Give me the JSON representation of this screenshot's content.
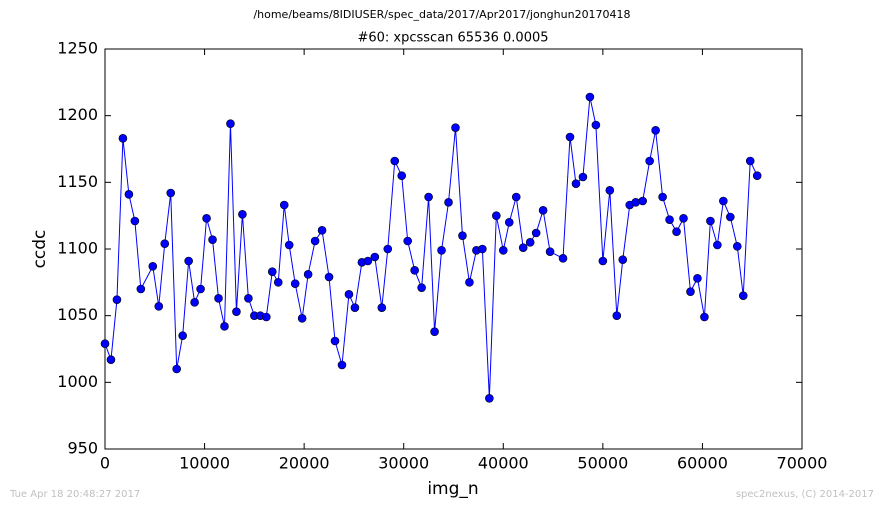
{
  "chart_data": {
    "type": "line",
    "suptitle": "/home/beams/8IDIUSER/spec_data/2017/Apr2017/jonghun20170418",
    "title": "#60: xpcsscan 65536 0.0005",
    "x_label": "img_n",
    "y_label": "ccdc",
    "footer_left": "Tue Apr 18 20:48:27 2017",
    "footer_right": "spec2nexus, (C) 2014-2017",
    "xlim": [
      0,
      70000
    ],
    "xticks": [
      0,
      10000,
      20000,
      30000,
      40000,
      50000,
      60000,
      70000
    ],
    "ylim": [
      950,
      1250
    ],
    "yticks": [
      950,
      1000,
      1050,
      1100,
      1150,
      1200,
      1250
    ],
    "x": [
      0,
      600,
      1200,
      1800,
      2400,
      3000,
      3600,
      4800,
      5400,
      6000,
      6600,
      7200,
      7800,
      8400,
      9000,
      9600,
      10200,
      10800,
      11400,
      12000,
      12600,
      13200,
      13800,
      14400,
      15000,
      15600,
      16200,
      16800,
      17400,
      18000,
      18500,
      19100,
      19800,
      20400,
      21100,
      21800,
      22500,
      23100,
      23800,
      24500,
      25100,
      25800,
      26400,
      27100,
      27800,
      28400,
      29100,
      29800,
      30400,
      31100,
      31800,
      32500,
      33100,
      33800,
      34500,
      35200,
      35900,
      36600,
      37300,
      37900,
      38600,
      39300,
      40000,
      40600,
      41300,
      42000,
      42700,
      43300,
      44000,
      44700,
      46000,
      46700,
      47300,
      48000,
      48700,
      49300,
      50000,
      50700,
      51400,
      52000,
      52700,
      53300,
      54000,
      54700,
      55300,
      56000,
      56700,
      57400,
      58100,
      58800,
      59500,
      60200,
      60800,
      61500,
      62100,
      62800,
      63500,
      64100,
      64800,
      65500
    ],
    "series": [
      {
        "color": "#0000ff",
        "marker": "circle",
        "values": [
          1029,
          1017,
          1062,
          1183,
          1141,
          1121,
          1070,
          1087,
          1057,
          1104,
          1142,
          1010,
          1035,
          1091,
          1060,
          1070,
          1123,
          1107,
          1063,
          1042,
          1194,
          1053,
          1126,
          1063,
          1050,
          1050,
          1049,
          1083,
          1075,
          1133,
          1103,
          1074,
          1048,
          1081,
          1106,
          1114,
          1079,
          1031,
          1013,
          1066,
          1056,
          1090,
          1091,
          1094,
          1056,
          1100,
          1166,
          1155,
          1106,
          1084,
          1071,
          1139,
          1038,
          1099,
          1135,
          1191,
          1110,
          1075,
          1099,
          1100,
          988,
          1125,
          1099,
          1120,
          1139,
          1101,
          1105,
          1112,
          1129,
          1098,
          1093,
          1184,
          1149,
          1154,
          1214,
          1193,
          1091,
          1144,
          1050,
          1092,
          1133,
          1135,
          1136,
          1166,
          1189,
          1139,
          1122,
          1113,
          1123,
          1068,
          1078,
          1049,
          1121,
          1103,
          1136,
          1124,
          1102,
          1065,
          1166,
          1155
        ]
      }
    ]
  }
}
